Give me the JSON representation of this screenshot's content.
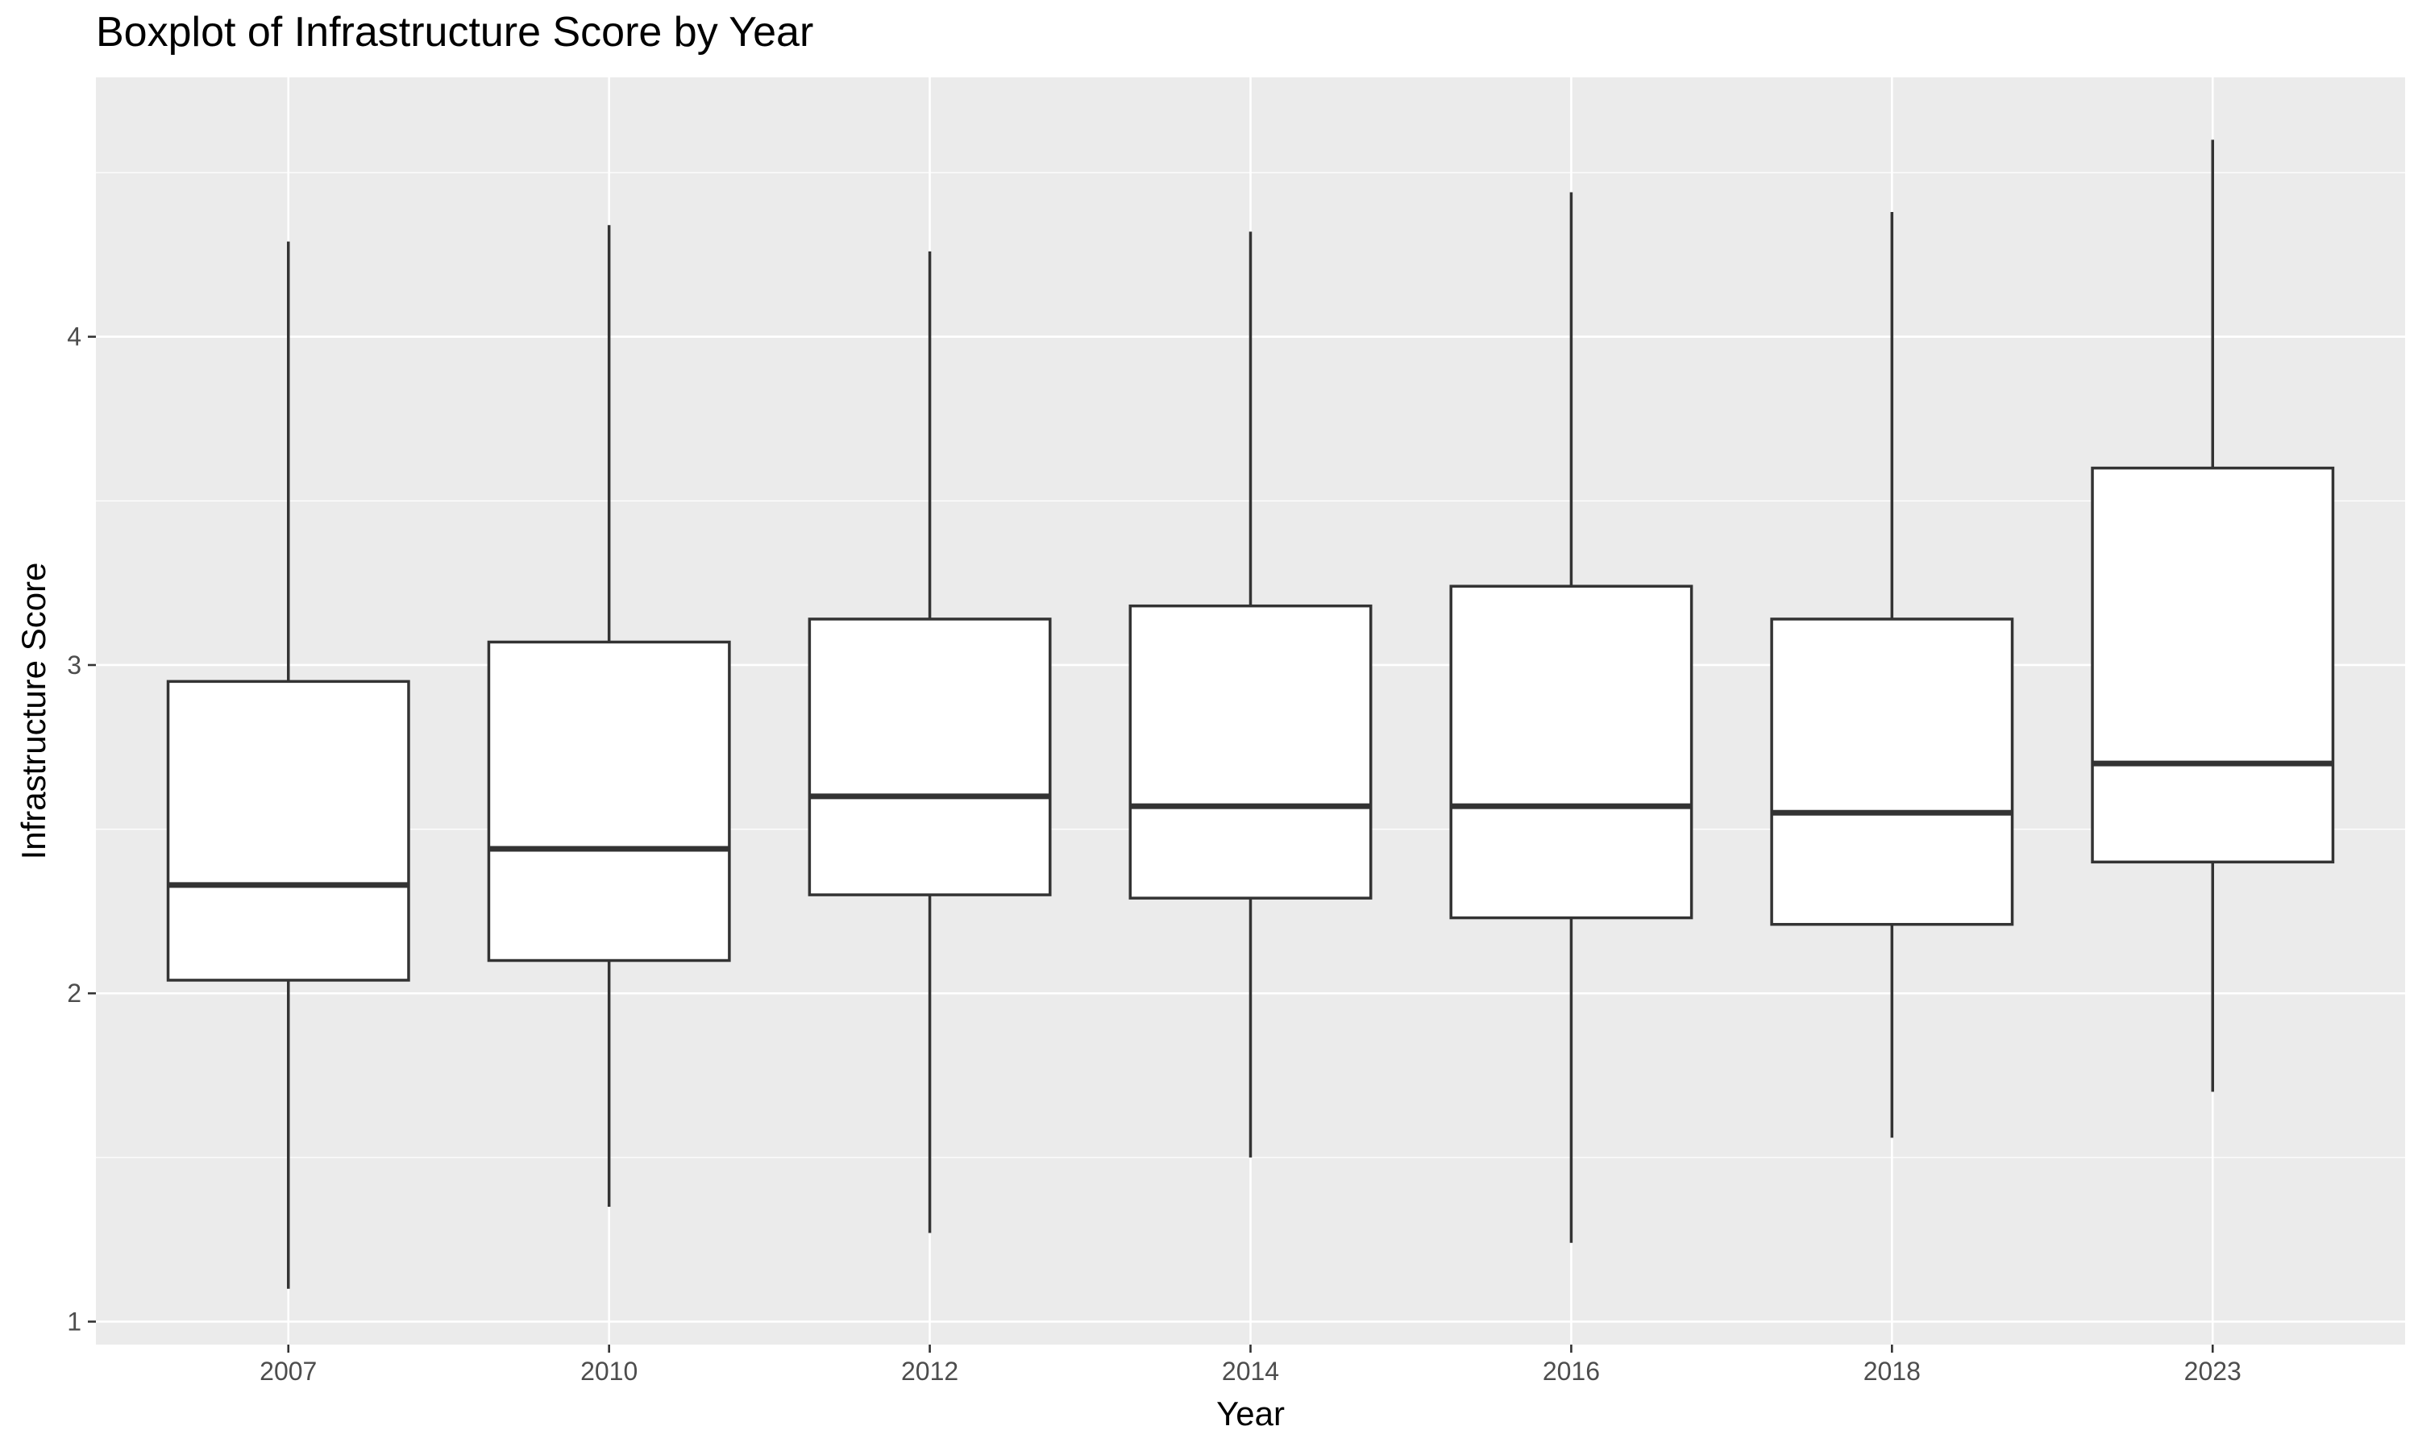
{
  "chart_data": {
    "type": "boxplot",
    "title": "Boxplot of Infrastructure Score by Year",
    "xlabel": "Year",
    "ylabel": "Infrastructure Score",
    "categories": [
      "2007",
      "2010",
      "2012",
      "2014",
      "2016",
      "2018",
      "2023"
    ],
    "boxes": [
      {
        "category": "2007",
        "min": 1.1,
        "q1": 2.04,
        "median": 2.33,
        "q3": 2.95,
        "max": 4.29
      },
      {
        "category": "2010",
        "min": 1.35,
        "q1": 2.1,
        "median": 2.44,
        "q3": 3.07,
        "max": 4.34
      },
      {
        "category": "2012",
        "min": 1.27,
        "q1": 2.3,
        "median": 2.6,
        "q3": 3.14,
        "max": 4.26
      },
      {
        "category": "2014",
        "min": 1.5,
        "q1": 2.29,
        "median": 2.57,
        "q3": 3.18,
        "max": 4.32
      },
      {
        "category": "2016",
        "min": 1.24,
        "q1": 2.23,
        "median": 2.57,
        "q3": 3.24,
        "max": 4.44
      },
      {
        "category": "2018",
        "min": 1.56,
        "q1": 2.21,
        "median": 2.55,
        "q3": 3.14,
        "max": 4.38
      },
      {
        "category": "2023",
        "min": 1.7,
        "q1": 2.4,
        "median": 2.7,
        "q3": 3.6,
        "max": 4.6
      }
    ],
    "yticks": [
      1,
      2,
      3,
      4
    ],
    "ylim": [
      0.93,
      4.79
    ],
    "grid": true,
    "legend": "none",
    "colors": {
      "panel_background": "#ebebeb",
      "grid": "#ffffff",
      "box_fill": "#ffffff",
      "box_stroke": "#333333",
      "tick_text": "#4d4d4d",
      "tick_mark": "#333333"
    }
  }
}
